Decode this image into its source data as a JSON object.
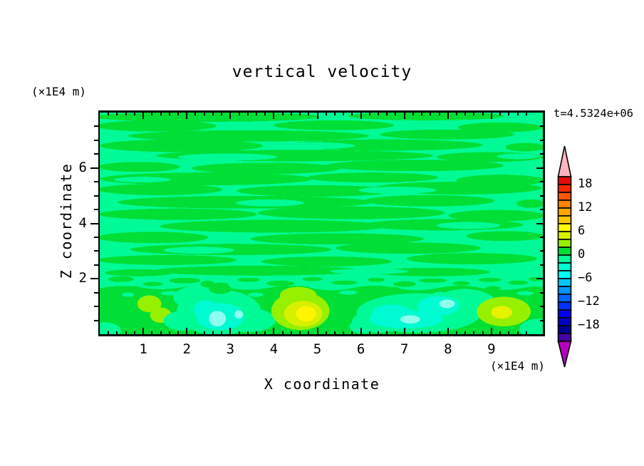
{
  "header": {
    "title": "vertical velocity",
    "timestamp": "t=4.5324e+06"
  },
  "axes": {
    "x": {
      "label": "X coordinate",
      "unit": "(×1E4 m)",
      "range": [
        0,
        10.18
      ],
      "major_ticks": [
        1,
        2,
        3,
        4,
        5,
        6,
        7,
        8,
        9
      ],
      "tick_labels": [
        "1",
        "2",
        "3",
        "4",
        "5",
        "6",
        "7",
        "8",
        "9"
      ],
      "minor_step": 0.2
    },
    "z": {
      "label": "Z coordinate",
      "unit": "(×1E4 m)",
      "range": [
        0,
        8
      ],
      "major_ticks": [
        2,
        4,
        6
      ],
      "tick_labels": [
        "2",
        "4",
        "6"
      ],
      "minor_step": 0.5
    }
  },
  "colorbar": {
    "box_colors": [
      "#E80A0A",
      "#FF2800",
      "#FF5700",
      "#FF8200",
      "#FFA500",
      "#FFC800",
      "#FFFF00",
      "#D7F000",
      "#96F000",
      "#00DF35",
      "#00FA96",
      "#00FAD2",
      "#00FFFF",
      "#00C8FF",
      "#0096FF",
      "#0064FF",
      "#0032FF",
      "#0000F0",
      "#0000C8",
      "#000096",
      "#4800A8"
    ],
    "over_color": "#FFB4BE",
    "under_color": "#B400BE",
    "labels": [
      {
        "text": "18",
        "boundary": 1
      },
      {
        "text": "12",
        "boundary": 4
      },
      {
        "text": "6",
        "boundary": 7
      },
      {
        "text": "0",
        "boundary": 10
      },
      {
        "text": "−6",
        "boundary": 13
      },
      {
        "text": "−12",
        "boundary": 16
      },
      {
        "text": "−18",
        "boundary": 19
      }
    ]
  },
  "chart_data": {
    "type": "heatmap",
    "subtype": "filled-contour",
    "title": "vertical velocity",
    "xlabel": "X coordinate",
    "ylabel": "Z coordinate",
    "x_unit": "(×1E4 m)",
    "z_unit": "(×1E4 m)",
    "timestamp": "t=4.5324e+06",
    "x_range": [
      0,
      10.18
    ],
    "z_range": [
      0,
      8
    ],
    "contour_level_step": 2,
    "labeled_levels": [
      18,
      12,
      6,
      0,
      -6,
      -12,
      -18
    ],
    "colorbar_position": "right",
    "field_colors": {
      "weak_positive": "#00DF35",
      "weak_negative": "#00FA96"
    },
    "features": [
      {
        "type": "background",
        "region": "z from 2 to 8",
        "pattern": "horizontal wavy streaks alternating between weakly positive (0..2, green) and weakly negative (-2..0, spring green) velocity"
      },
      {
        "type": "transition",
        "region": "z near 1.8",
        "pattern": "noisy speckled boundary between streaky upper layer and convective bottom layer"
      },
      {
        "type": "updraft-blob",
        "x": 1.1,
        "z": 0.8,
        "approx_max_level": "2 to 4",
        "color": "#96F000"
      },
      {
        "type": "downdraft-blob",
        "x": 2.7,
        "z": 0.8,
        "approx_min_level": "-4 to -6",
        "colors": [
          "#00FA96",
          "#00FAD2",
          "#8CFFEE"
        ]
      },
      {
        "type": "updraft-blob",
        "x": 4.6,
        "z": 0.8,
        "approx_max_level": "6 to 8",
        "colors": [
          "#96F000",
          "#D7F000",
          "#FFF500"
        ]
      },
      {
        "type": "downdraft-band",
        "x_from": 6.0,
        "x_to": 8.3,
        "z": 0.8,
        "approx_min_level": "-4 to -6",
        "colors": [
          "#00FA96",
          "#00FAD2",
          "#8CFFEE"
        ]
      },
      {
        "type": "updraft-blob",
        "x": 9.1,
        "z": 0.8,
        "approx_max_level": "4 to 6",
        "colors": [
          "#96F000",
          "#E6F300"
        ]
      },
      {
        "type": "downdraft-patch",
        "x": 5.9,
        "z": 0.25,
        "approx_min_level": "-2 to -4"
      }
    ]
  }
}
